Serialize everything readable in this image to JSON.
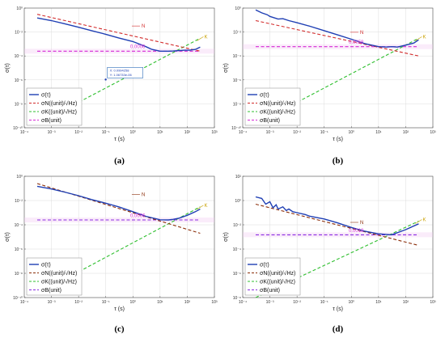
{
  "chart_data": [
    {
      "type": "line",
      "panel": "a",
      "caption": "(a)",
      "x_scale": "log",
      "y_scale": "log",
      "xlim": [
        0.0001,
        1000
      ],
      "ylim": [
        1e-10,
        1
      ],
      "xticks": [
        "10⁻⁴",
        "10⁻³",
        "10⁻²",
        "10⁻¹",
        "10⁰",
        "10¹",
        "10²",
        "10³"
      ],
      "yticks": [
        "10⁻¹⁰",
        "10⁻⁸",
        "10⁻⁶",
        "10⁻⁴",
        "10⁻²",
        "10⁰"
      ],
      "ylabel": "σ(τ)",
      "xlabel": "τ  (s)",
      "grid": true,
      "legend_position": "lower-left",
      "series": [
        {
          "name": "σ(τ)",
          "color": "#1f3fb4",
          "style": "solid",
          "x": [
            0.0003,
            0.001,
            0.003,
            0.01,
            0.03,
            0.1,
            0.3,
            1,
            3,
            5,
            10,
            20,
            30,
            50,
            80,
            120,
            200,
            300
          ],
          "y": [
            0.15,
            0.09,
            0.05,
            0.025,
            0.013,
            0.0065,
            0.0032,
            0.0016,
            0.0006,
            0.00035,
            0.00025,
            0.00025,
            0.00026,
            0.00028,
            0.0003,
            0.0003,
            0.00035,
            0.00055
          ]
        },
        {
          "name": "σN((unit)/√Hz)",
          "color": "#d22b2b",
          "style": "dashed",
          "x": [
            0.0003,
            300
          ],
          "y": [
            0.3,
            0.00025
          ]
        },
        {
          "name": "σK((unit)/√Hz)",
          "color": "#2fbf2f",
          "style": "dashed",
          "x": [
            0.0003,
            300
          ],
          "y": [
            2e-10,
            0.003
          ]
        },
        {
          "name": "σB(unit)",
          "color": "#d62ad6",
          "style": "dashed",
          "x": [
            0.0003,
            300
          ],
          "y": [
            0.00025,
            0.00025
          ]
        }
      ],
      "annotations": [
        {
          "text": "N",
          "x": 1.2,
          "y": 0.02,
          "color": "#d22b2b"
        },
        {
          "text": "K",
          "x": 520,
          "y": 0.003,
          "color": "#c9a000"
        },
        {
          "text": "0.0006",
          "x": 0.8,
          "y": 0.00032,
          "color": "#d62ad6"
        }
      ],
      "datatip": {
        "line1": "X: 0.0994258",
        "line2": "Y: 1.06733e-06",
        "x": 0.0994258,
        "y": 1.06733e-06
      }
    },
    {
      "type": "line",
      "panel": "b",
      "caption": "(b)",
      "x_scale": "log",
      "y_scale": "log",
      "xlim": [
        0.0001,
        1000
      ],
      "ylim": [
        1e-10,
        1
      ],
      "xticks": [
        "10⁻⁴",
        "10⁻³",
        "10⁻²",
        "10⁻¹",
        "10⁰",
        "10¹",
        "10²",
        "10³"
      ],
      "yticks": [
        "10⁻¹⁰",
        "10⁻⁸",
        "10⁻⁶",
        "10⁻⁴",
        "10⁻²",
        "10⁰"
      ],
      "ylabel": "σ(τ)",
      "xlabel": "τ  (s)",
      "grid": true,
      "legend_position": "lower-left",
      "series": [
        {
          "name": "σ(τ)",
          "color": "#1f3fb4",
          "style": "solid",
          "x": [
            0.0003,
            0.0005,
            0.0008,
            0.001,
            0.002,
            0.003,
            0.005,
            0.01,
            0.03,
            0.1,
            0.3,
            1,
            3,
            10,
            20,
            30,
            50,
            100,
            200,
            300
          ],
          "y": [
            0.7,
            0.4,
            0.28,
            0.2,
            0.12,
            0.13,
            0.09,
            0.06,
            0.03,
            0.013,
            0.006,
            0.0025,
            0.0011,
            0.0006,
            0.00055,
            0.0006,
            0.00055,
            0.0008,
            0.0012,
            0.0022
          ]
        },
        {
          "name": "σN((unit)/√Hz)",
          "color": "#d22b2b",
          "style": "dashed",
          "x": [
            0.0003,
            300
          ],
          "y": [
            0.09,
            0.0001
          ]
        },
        {
          "name": "σK((unit)/√Hz)",
          "color": "#2fbf2f",
          "style": "dashed",
          "x": [
            0.0003,
            300
          ],
          "y": [
            2e-10,
            0.003
          ]
        },
        {
          "name": "σB(unit)",
          "color": "#d62ad6",
          "style": "dashed",
          "x": [
            0.0003,
            300
          ],
          "y": [
            0.0006,
            0.0006
          ]
        }
      ],
      "annotations": [
        {
          "text": "N",
          "x": 1.2,
          "y": 0.006,
          "color": "#d22b2b"
        },
        {
          "text": "K",
          "x": 520,
          "y": 0.003,
          "color": "#c9a000"
        },
        {
          "text": "0.0058",
          "x": 0.8,
          "y": 0.0008,
          "color": "#d62ad6"
        }
      ]
    },
    {
      "type": "line",
      "panel": "c",
      "caption": "(c)",
      "x_scale": "log",
      "y_scale": "log",
      "xlim": [
        0.0001,
        1000
      ],
      "ylim": [
        1e-10,
        1
      ],
      "xticks": [
        "10⁻⁴",
        "10⁻³",
        "10⁻²",
        "10⁻¹",
        "10⁰",
        "10¹",
        "10²",
        "10³"
      ],
      "yticks": [
        "10⁻¹⁰",
        "10⁻⁸",
        "10⁻⁶",
        "10⁻⁴",
        "10⁻²",
        "10⁰"
      ],
      "ylabel": "σ(τ)",
      "xlabel": "τ  (s)",
      "grid": true,
      "legend_position": "lower-left",
      "series": [
        {
          "name": "σ(τ)",
          "color": "#1f3fb4",
          "style": "solid",
          "x": [
            0.0003,
            0.001,
            0.003,
            0.01,
            0.03,
            0.1,
            0.3,
            1,
            3,
            10,
            20,
            30,
            50,
            100,
            200,
            300
          ],
          "y": [
            0.15,
            0.09,
            0.05,
            0.025,
            0.012,
            0.006,
            0.003,
            0.0012,
            0.0005,
            0.00026,
            0.00025,
            0.00028,
            0.00035,
            0.0006,
            0.0012,
            0.002
          ]
        },
        {
          "name": "σN((unit)/√Hz)",
          "color": "#8b2e0a",
          "style": "dashed",
          "x": [
            0.0003,
            300
          ],
          "y": [
            0.25,
            2e-05
          ]
        },
        {
          "name": "σK((unit)/√Hz)",
          "color": "#2fbf2f",
          "style": "dashed",
          "x": [
            0.0003,
            300
          ],
          "y": [
            2e-10,
            0.003
          ]
        },
        {
          "name": "σB(unit)",
          "color": "#8a2be2",
          "style": "dashed",
          "x": [
            0.0003,
            300
          ],
          "y": [
            0.00025,
            0.00025
          ]
        }
      ],
      "annotations": [
        {
          "text": "N",
          "x": 1.2,
          "y": 0.02,
          "color": "#8b2e0a"
        },
        {
          "text": "K",
          "x": 520,
          "y": 0.003,
          "color": "#c9a000"
        },
        {
          "text": "0.0006",
          "x": 0.8,
          "y": 0.00032,
          "color": "#d62ad6"
        }
      ]
    },
    {
      "type": "line",
      "panel": "d",
      "caption": "(d)",
      "x_scale": "log",
      "y_scale": "log",
      "xlim": [
        0.0001,
        1000
      ],
      "ylim": [
        1e-08,
        100
      ],
      "xticks": [
        "10⁻⁴",
        "10⁻³",
        "10⁻²",
        "10⁻¹",
        "10⁰",
        "10¹",
        "10²",
        "10³"
      ],
      "yticks": [
        "10⁻⁸",
        "10⁻⁶",
        "10⁻⁴",
        "10⁻²",
        "10⁰",
        "10²"
      ],
      "ylabel": "σ(τ)",
      "xlabel": "τ  (s)",
      "grid": true,
      "legend_position": "lower-left",
      "series": [
        {
          "name": "σ(τ)",
          "color": "#1f3fb4",
          "style": "solid",
          "x": [
            0.0003,
            0.0005,
            0.0007,
            0.001,
            0.0013,
            0.0017,
            0.002,
            0.003,
            0.004,
            0.005,
            0.007,
            0.01,
            0.02,
            0.03,
            0.1,
            0.3,
            1,
            3,
            10,
            30,
            100,
            300
          ],
          "y": [
            2,
            1.5,
            0.5,
            0.8,
            0.25,
            0.45,
            0.2,
            0.3,
            0.15,
            0.2,
            0.12,
            0.1,
            0.07,
            0.05,
            0.03,
            0.015,
            0.006,
            0.003,
            0.0018,
            0.0015,
            0.004,
            0.012
          ]
        },
        {
          "name": "σN((unit)/√Hz)",
          "color": "#8b2e0a",
          "style": "dashed",
          "x": [
            0.0003,
            300
          ],
          "y": [
            0.5,
            0.0002
          ]
        },
        {
          "name": "σK((unit)/√Hz)",
          "color": "#2fbf2f",
          "style": "dashed",
          "x": [
            0.0003,
            300
          ],
          "y": [
            1e-08,
            0.02
          ]
        },
        {
          "name": "σB(unit)",
          "color": "#8a2be2",
          "style": "dashed",
          "x": [
            0.0003,
            300
          ],
          "y": [
            0.0015,
            0.0015
          ]
        }
      ],
      "annotations": [
        {
          "text": "N",
          "x": 1.2,
          "y": 0.01,
          "color": "#8b2e0a"
        },
        {
          "text": "K",
          "x": 520,
          "y": 0.02,
          "color": "#c9a000"
        },
        {
          "text": "0.0018",
          "x": 0.8,
          "y": 0.0018,
          "color": "#d62ad6"
        }
      ]
    }
  ]
}
